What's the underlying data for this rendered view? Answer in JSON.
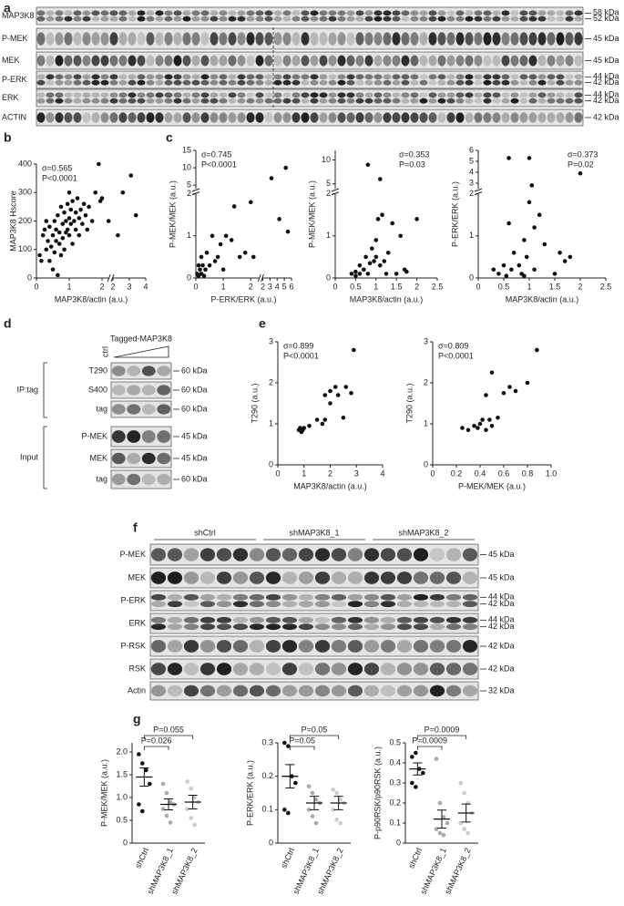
{
  "panel_labels": [
    "a",
    "b",
    "c",
    "d",
    "e",
    "f",
    "g"
  ],
  "blots": {
    "a": {
      "rows": [
        {
          "name": "MAP3K8",
          "sizes": [
            "58 kDa",
            "52 kDa"
          ]
        },
        {
          "name": "P-MEK",
          "sizes": [
            "45 kDa"
          ]
        },
        {
          "name": "MEK",
          "sizes": [
            "45 kDa"
          ]
        },
        {
          "name": "P-ERK",
          "sizes": [
            "44 kDa",
            "42 kDa"
          ]
        },
        {
          "name": "ERK",
          "sizes": [
            "44 kDa",
            "42 kDa"
          ]
        },
        {
          "name": "ACTIN",
          "sizes": [
            "42 kDa"
          ]
        }
      ]
    },
    "d": {
      "ctrl": "ctrl",
      "tagged": "Tagged-MAP3K8",
      "groups": [
        {
          "name": "IP:tag",
          "rows": [
            {
              "name": "T290",
              "sizes": [
                "60 kDa"
              ]
            },
            {
              "name": "S400",
              "sizes": [
                "60 kDa"
              ]
            },
            {
              "name": "tag",
              "sizes": [
                "60 kDa"
              ]
            }
          ]
        },
        {
          "name": "Input",
          "rows": [
            {
              "name": "P-MEK",
              "sizes": [
                "45 kDa"
              ]
            },
            {
              "name": "MEK",
              "sizes": [
                "45 kDa"
              ]
            },
            {
              "name": "tag",
              "sizes": [
                "60 kDa"
              ]
            }
          ]
        }
      ]
    },
    "f": {
      "groups": [
        "shCtrl",
        "shMAP3K8_1",
        "shMAP3K8_2"
      ],
      "rows": [
        {
          "name": "P-MEK",
          "sizes": [
            "45 kDa"
          ]
        },
        {
          "name": "MEK",
          "sizes": [
            "45 kDa"
          ]
        },
        {
          "name": "P-ERK",
          "sizes": [
            "44 kDa",
            "42 kDa"
          ]
        },
        {
          "name": "ERK",
          "sizes": [
            "44 kDa",
            "42 kDa"
          ]
        },
        {
          "name": "P-RSK",
          "sizes": [
            "42 kDa"
          ]
        },
        {
          "name": "RSK",
          "sizes": [
            "42 kDa"
          ]
        },
        {
          "name": "Actin",
          "sizes": [
            "32 kDa"
          ]
        }
      ]
    }
  },
  "chart_data": [
    {
      "type": "scatter",
      "x_label": "MAP3K8/actin (a.u.)",
      "y_label": "MAP3K8 Hscore",
      "annotations": [
        "σ=0.565",
        "P<0.0001"
      ],
      "x_segments": [
        {
          "xlim": [
            0,
            2.2
          ],
          "xticks": [
            0,
            1,
            2
          ]
        },
        {
          "xlim": [
            2,
            4
          ],
          "xticks": [
            2,
            3,
            4
          ]
        }
      ],
      "ylim": [
        0,
        400
      ],
      "yticks": [
        0,
        100,
        200,
        300,
        400
      ],
      "x": [
        0.1,
        0.15,
        0.2,
        0.25,
        0.3,
        0.3,
        0.35,
        0.4,
        0.4,
        0.45,
        0.5,
        0.5,
        0.55,
        0.55,
        0.6,
        0.6,
        0.65,
        0.65,
        0.7,
        0.7,
        0.75,
        0.75,
        0.8,
        0.8,
        0.85,
        0.85,
        0.9,
        0.9,
        0.95,
        0.95,
        1.0,
        1.0,
        1.0,
        1.05,
        1.05,
        1.1,
        1.1,
        1.15,
        1.2,
        1.2,
        1.25,
        1.3,
        1.3,
        1.35,
        1.4,
        1.45,
        1.5,
        1.55,
        1.6,
        1.7,
        1.8,
        1.9,
        1.95,
        2.0,
        2.2,
        2.3,
        2.6,
        3.1,
        3.4
      ],
      "values": [
        80,
        60,
        150,
        170,
        100,
        200,
        130,
        180,
        60,
        110,
        150,
        30,
        200,
        90,
        170,
        130,
        220,
        10,
        160,
        120,
        250,
        80,
        190,
        140,
        230,
        100,
        200,
        160,
        260,
        170,
        210,
        300,
        150,
        240,
        190,
        270,
        120,
        200,
        230,
        170,
        280,
        210,
        150,
        240,
        190,
        260,
        220,
        170,
        250,
        200,
        300,
        400,
        270,
        280,
        200,
        150,
        300,
        360,
        220
      ]
    },
    {
      "type": "scatter",
      "x_label": "P-ERK/ERK (a.u.)",
      "y_label": "P-MEK/MEK (a.u.)",
      "annotations": [
        "σ=0.745",
        "P<0.0001"
      ],
      "x_segments": [
        {
          "xlim": [
            0,
            2.3
          ],
          "xticks": [
            0,
            1,
            2
          ]
        },
        {
          "xlim": [
            2,
            6
          ],
          "xticks": [
            2,
            3,
            4,
            5,
            6
          ]
        }
      ],
      "y_segments": [
        {
          "ylim": [
            0,
            2
          ],
          "yticks": [
            0,
            1,
            2
          ]
        },
        {
          "ylim": [
            4,
            15
          ],
          "yticks": [
            5,
            10,
            15
          ]
        }
      ],
      "x": [
        0.05,
        0.1,
        0.1,
        0.15,
        0.2,
        0.2,
        0.25,
        0.3,
        0.35,
        0.4,
        0.5,
        0.6,
        0.7,
        0.8,
        0.9,
        1.0,
        1.1,
        1.3,
        1.4,
        1.6,
        1.8,
        2.0,
        2.1,
        3.2,
        4.3,
        5.2,
        5.5
      ],
      "values": [
        0.1,
        0.3,
        0.05,
        0.2,
        0.1,
        0.5,
        0.3,
        0.05,
        0.2,
        0.6,
        0.3,
        1.0,
        0.4,
        0.5,
        0.8,
        0.2,
        1.0,
        0.9,
        1.7,
        0.5,
        0.6,
        1.8,
        0.5,
        7,
        1.4,
        10,
        1.1
      ]
    },
    {
      "type": "scatter",
      "x_label": "MAP3K8/actin (a.u.)",
      "y_label": "P-MEK/MEK (a.u.)",
      "annotations": [
        "σ=0.353",
        "P=0.03"
      ],
      "xlim": [
        0,
        2.5
      ],
      "xticks": [
        0,
        0.5,
        1,
        1.5,
        2,
        2.5
      ],
      "y_segments": [
        {
          "ylim": [
            0,
            2
          ],
          "yticks": [
            0,
            1,
            2
          ]
        },
        {
          "ylim": [
            4,
            12
          ],
          "yticks": [
            5,
            10
          ]
        }
      ],
      "x": [
        0.4,
        0.5,
        0.6,
        0.6,
        0.7,
        0.75,
        0.8,
        0.85,
        0.9,
        0.95,
        1.0,
        1.0,
        1.05,
        1.1,
        1.1,
        1.15,
        1.2,
        1.25,
        1.3,
        1.4,
        1.5,
        1.6,
        1.7,
        1.75,
        2.0,
        0.5,
        0.8
      ],
      "values": [
        0.1,
        0.15,
        0.1,
        0.3,
        0.2,
        0.5,
        0.1,
        0.35,
        0.7,
        0.4,
        0.5,
        0.9,
        1.4,
        0.3,
        6,
        1.5,
        0.4,
        0.1,
        0.6,
        1.3,
        0.1,
        1.0,
        0.2,
        0.15,
        1.4,
        0.05,
        9
      ]
    },
    {
      "type": "scatter",
      "x_label": "MAP3K8/actin (a.u.)",
      "y_label": "P-ERK/ERK (a.u.)",
      "annotations": [
        "σ=0.373",
        "P=0.02"
      ],
      "xlim": [
        0,
        2.5
      ],
      "xticks": [
        0,
        0.5,
        1,
        1.5,
        2,
        2.5
      ],
      "y_segments": [
        {
          "ylim": [
            0,
            2
          ],
          "yticks": [
            0,
            1,
            2
          ]
        },
        {
          "ylim": [
            2.5,
            6
          ],
          "yticks": [
            3,
            4,
            5,
            6
          ]
        }
      ],
      "x": [
        0.3,
        0.4,
        0.5,
        0.55,
        0.6,
        0.6,
        0.65,
        0.7,
        0.8,
        0.85,
        0.9,
        0.95,
        1.0,
        1.0,
        1.05,
        1.1,
        1.1,
        1.2,
        1.3,
        1.5,
        1.6,
        1.7,
        1.8,
        2.0,
        0.9
      ],
      "values": [
        0.2,
        0.1,
        0.3,
        0.05,
        5.3,
        1.3,
        0.2,
        0.6,
        0.3,
        0.1,
        0.9,
        0.5,
        1.8,
        5.3,
        2.2,
        1.2,
        0.2,
        1.5,
        0.8,
        0.1,
        0.6,
        0.4,
        0.5,
        3.9,
        0.05
      ]
    },
    {
      "type": "scatter",
      "x_label": "MAP3K8/actin (a.u.)",
      "y_label": "T290 (a.u.)",
      "annotations": [
        "σ=0.899",
        "P<0.0001"
      ],
      "xlim": [
        0,
        4
      ],
      "xticks": [
        0,
        1,
        2,
        3,
        4
      ],
      "ylim": [
        0,
        3
      ],
      "yticks": [
        0,
        1,
        2,
        3
      ],
      "x": [
        0.8,
        0.85,
        0.9,
        0.95,
        1.0,
        1.2,
        1.5,
        1.7,
        1.8,
        1.8,
        2.0,
        2.0,
        2.2,
        2.3,
        2.5,
        2.6,
        2.8,
        2.9
      ],
      "values": [
        0.85,
        0.9,
        0.8,
        0.85,
        0.9,
        0.95,
        1.1,
        1.0,
        1.1,
        1.7,
        1.5,
        1.8,
        1.9,
        1.7,
        1.15,
        1.9,
        1.75,
        2.8
      ]
    },
    {
      "type": "scatter",
      "x_label": "P-MEK/MEK (a.u.)",
      "y_label": "T290 (a.u.)",
      "annotations": [
        "σ=0.809",
        "P<0.0001"
      ],
      "xlim": [
        0,
        1
      ],
      "xticks": [
        0,
        0.2,
        0.4,
        0.6,
        0.8,
        {
          "value": 1,
          "label": "1.0"
        }
      ],
      "ylim": [
        0,
        3
      ],
      "yticks": [
        0,
        1,
        2,
        3
      ],
      "x": [
        0.25,
        0.3,
        0.35,
        0.38,
        0.4,
        0.42,
        0.45,
        0.45,
        0.48,
        0.5,
        0.5,
        0.55,
        0.6,
        0.65,
        0.7,
        0.8,
        0.88
      ],
      "values": [
        0.9,
        0.85,
        0.95,
        0.9,
        1.0,
        1.1,
        1.7,
        0.85,
        1.1,
        0.95,
        2.25,
        1.15,
        1.75,
        1.9,
        1.8,
        2.0,
        2.8
      ]
    },
    {
      "type": "dot",
      "y_label": "P-MEK/MEK (a.u.)",
      "annotations": [
        "P=0.055",
        "P=0.026"
      ],
      "categories": [
        "shCtrl",
        "shMAP3K8_1",
        "shMAP3K8_2"
      ],
      "ylim": [
        0,
        2.2
      ],
      "yticks": [
        0,
        0.5,
        {
          "value": 1,
          "label": "1.0"
        },
        1.5,
        {
          "value": 2,
          "label": "2.0"
        }
      ],
      "groups": [
        {
          "color": "#111111",
          "values": [
            1.95,
            1.75,
            1.6,
            1.3,
            0.85,
            0.7
          ],
          "mean": 1.45,
          "sem": 0.2
        },
        {
          "color": "#aaaaaa",
          "values": [
            1.3,
            1.1,
            0.9,
            0.85,
            0.75,
            0.6,
            0.45
          ],
          "mean": 0.85,
          "sem": 0.12
        },
        {
          "color": "#cccccc",
          "values": [
            1.35,
            1.2,
            1.0,
            0.9,
            0.75,
            0.55,
            0.4
          ],
          "mean": 0.9,
          "sem": 0.15
        }
      ]
    },
    {
      "type": "dot",
      "y_label": "P-ERK/ERK (a.u.)",
      "annotations": [
        "P=0.05",
        "P=0.05"
      ],
      "categories": [
        "shCtrl",
        "shMAP3K8_1",
        "shMAP3K8_2"
      ],
      "ylim": [
        0,
        0.3
      ],
      "yticks": [
        0,
        0.1,
        0.2,
        0.3
      ],
      "groups": [
        {
          "color": "#111111",
          "values": [
            0.3,
            0.29,
            0.2,
            0.18,
            0.1,
            0.09
          ],
          "mean": 0.2,
          "sem": 0.035
        },
        {
          "color": "#aaaaaa",
          "values": [
            0.17,
            0.15,
            0.13,
            0.12,
            0.1,
            0.08,
            0.06
          ],
          "mean": 0.12,
          "sem": 0.02
        },
        {
          "color": "#cccccc",
          "values": [
            0.16,
            0.15,
            0.13,
            0.12,
            0.1,
            0.07,
            0.06
          ],
          "mean": 0.12,
          "sem": 0.02
        }
      ]
    },
    {
      "type": "dot",
      "y_label": "P-p90RSK/p90RSK (a.u.)",
      "annotations": [
        "P=0.0009",
        "P=0.0009"
      ],
      "categories": [
        "shCtrl",
        "shMAP3K8_1",
        "shMAP3K8_2"
      ],
      "ylim": [
        0,
        0.5
      ],
      "yticks": [
        0,
        0.1,
        0.2,
        0.3,
        0.4,
        0.5
      ],
      "groups": [
        {
          "color": "#111111",
          "values": [
            0.43,
            0.45,
            0.37,
            0.35,
            0.3,
            0.28
          ],
          "mean": 0.37,
          "sem": 0.03
        },
        {
          "color": "#aaaaaa",
          "values": [
            0.42,
            0.2,
            0.13,
            0.1,
            0.07,
            0.05,
            0.04
          ],
          "mean": 0.12,
          "sem": 0.045
        },
        {
          "color": "#cccccc",
          "values": [
            0.3,
            0.25,
            0.2,
            0.15,
            0.1,
            0.07,
            0.05
          ],
          "mean": 0.15,
          "sem": 0.045
        }
      ]
    }
  ]
}
